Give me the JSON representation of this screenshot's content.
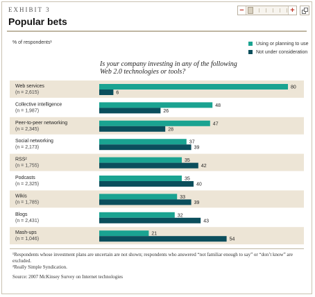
{
  "header": {
    "exhibit": "EXHIBIT 3",
    "title": "Popular bets"
  },
  "toolbar": {
    "zoom_out_label": "−",
    "zoom_in_label": "+"
  },
  "colors": {
    "using": "#1aa391",
    "not_using": "#0b4e5c",
    "band": "#ede5d6",
    "accent": "#c0392b"
  },
  "chart_data": {
    "type": "bar",
    "orientation": "horizontal",
    "unit_label": "% of respondents¹",
    "question": [
      "Is your company investing in any of the following",
      "Web 2.0 technologies or tools?"
    ],
    "categories": [
      {
        "label": "Web services",
        "n": "(n = 2,615)"
      },
      {
        "label": "Collective intelligence",
        "n": "(n = 1,987)"
      },
      {
        "label": "Peer-to-peer networking",
        "n": "(n = 2,345)"
      },
      {
        "label": "Social networking",
        "n": "(n = 2,173)"
      },
      {
        "label": "RSS²",
        "n": "(n = 1,755)"
      },
      {
        "label": "Podcasts",
        "n": "(n = 2,325)"
      },
      {
        "label": "Wikis",
        "n": "(n = 1,785)"
      },
      {
        "label": "Blogs",
        "n": "(n = 2,431)"
      },
      {
        "label": "Mash-ups",
        "n": "(n = 1,046)"
      }
    ],
    "series": [
      {
        "name": "Using or planning to use",
        "values": [
          80,
          48,
          47,
          37,
          35,
          35,
          33,
          32,
          21
        ]
      },
      {
        "name": "Not under consideration",
        "values": [
          6,
          26,
          28,
          39,
          42,
          40,
          39,
          43,
          54
        ]
      }
    ],
    "legend_position": "top-right"
  },
  "footnotes": {
    "note1": "¹Respondents whose investment plans are uncertain are not shown; respondents who answered “not familiar enough to say” or “don’t know” are excluded.",
    "note2": "²Really Simple Syndication.",
    "source": "Source: 2007 McKinsey Survey on Internet technologies"
  }
}
